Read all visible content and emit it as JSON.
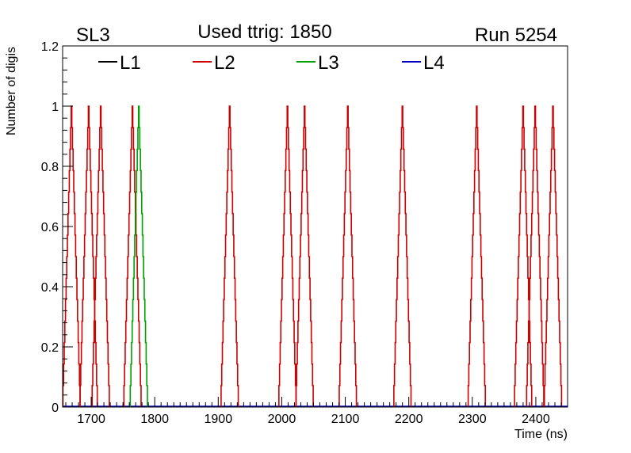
{
  "labels": {
    "superlayer": "SL3",
    "title": "Used ttrig: 1850",
    "run": "Run 5254"
  },
  "chart_data": {
    "type": "line",
    "subtype": "step-histogram",
    "xlabel": "Time (ns)",
    "ylabel": "Number of digis",
    "xlim": [
      1655,
      2450
    ],
    "ylim": [
      0,
      1.2
    ],
    "x_ticks": [
      1700,
      1800,
      1900,
      2000,
      2100,
      2200,
      2300,
      2400
    ],
    "y_ticks": [
      0,
      0.2,
      0.4,
      0.6,
      0.8,
      1,
      1.2
    ],
    "y_tick_labels": [
      "0",
      "0.2",
      "0.4",
      "0.6",
      "0.8",
      "1",
      "1.2"
    ],
    "legend_position": "top",
    "grid": false,
    "series": [
      {
        "name": "L1",
        "color": "#000000",
        "peaks": []
      },
      {
        "name": "L2",
        "color": "#cc0000",
        "peaks": [
          {
            "x": 1669,
            "value": 1
          },
          {
            "x": 1696,
            "value": 1
          },
          {
            "x": 1715,
            "value": 1
          },
          {
            "x": 1765,
            "value": 1
          },
          {
            "x": 1918,
            "value": 1
          },
          {
            "x": 2009,
            "value": 1
          },
          {
            "x": 2036,
            "value": 1
          },
          {
            "x": 2104,
            "value": 1
          },
          {
            "x": 2190,
            "value": 1
          },
          {
            "x": 2307,
            "value": 1
          },
          {
            "x": 2380,
            "value": 1
          },
          {
            "x": 2399,
            "value": 1
          },
          {
            "x": 2427,
            "value": 1
          }
        ]
      },
      {
        "name": "L3",
        "color": "#00a000",
        "peaks": [
          {
            "x": 1775,
            "value": 1
          }
        ]
      },
      {
        "name": "L4",
        "color": "#0000c0",
        "peaks": []
      }
    ]
  }
}
